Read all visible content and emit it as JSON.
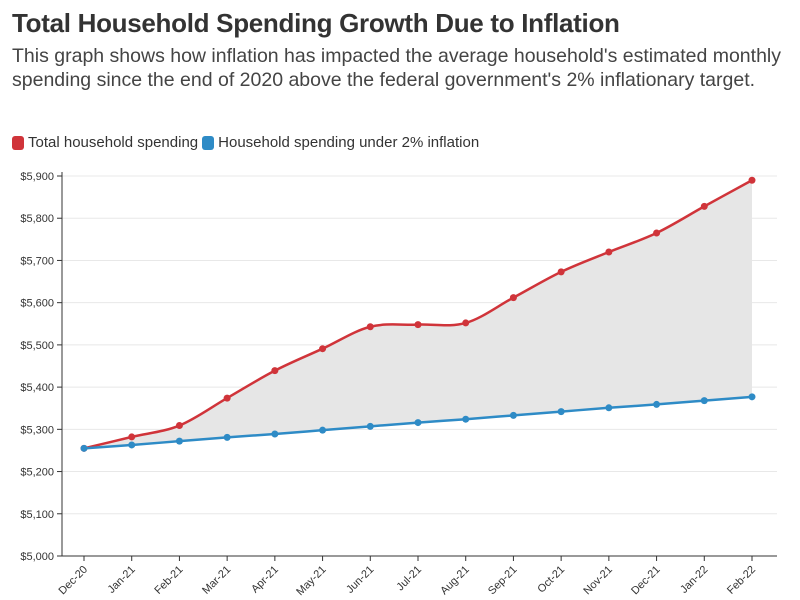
{
  "chart_data": {
    "type": "area",
    "title": "Total Household Spending Growth Due to Inflation",
    "subtitle": "This graph shows how inflation has impacted the average household's estimated monthly spending since the end of 2020 above the federal government's 2% inflationary target.",
    "categories": [
      "Dec-20",
      "Jan-21",
      "Feb-21",
      "Mar-21",
      "Apr-21",
      "May-21",
      "Jun-21",
      "Jul-21",
      "Aug-21",
      "Sep-21",
      "Oct-21",
      "Nov-21",
      "Dec-21",
      "Jan-22",
      "Feb-22"
    ],
    "series": [
      {
        "name": "Total household spending",
        "color": "#d0343a",
        "values": [
          5255,
          5282,
          5309,
          5374,
          5439,
          5491,
          5543,
          5548,
          5552,
          5612,
          5673,
          5720,
          5765,
          5828,
          5890
        ]
      },
      {
        "name": "Household spending under 2% inflation",
        "color": "#2e8bc6",
        "values": [
          5255,
          5263,
          5272,
          5281,
          5289,
          5298,
          5307,
          5316,
          5324,
          5333,
          5342,
          5351,
          5359,
          5368,
          5377
        ]
      }
    ],
    "ylim": [
      5000,
      5900
    ],
    "y_ticks": [
      5000,
      5100,
      5200,
      5300,
      5400,
      5500,
      5600,
      5700,
      5800,
      5900
    ],
    "y_tick_labels": [
      "$5,000",
      "$5,100",
      "$5,200",
      "$5,300",
      "$5,400",
      "$5,500",
      "$5,600",
      "$5,700",
      "$5,800",
      "$5,900"
    ],
    "fill_between_color": "#e6e6e6",
    "grid": true,
    "legend_position": "top-left"
  }
}
